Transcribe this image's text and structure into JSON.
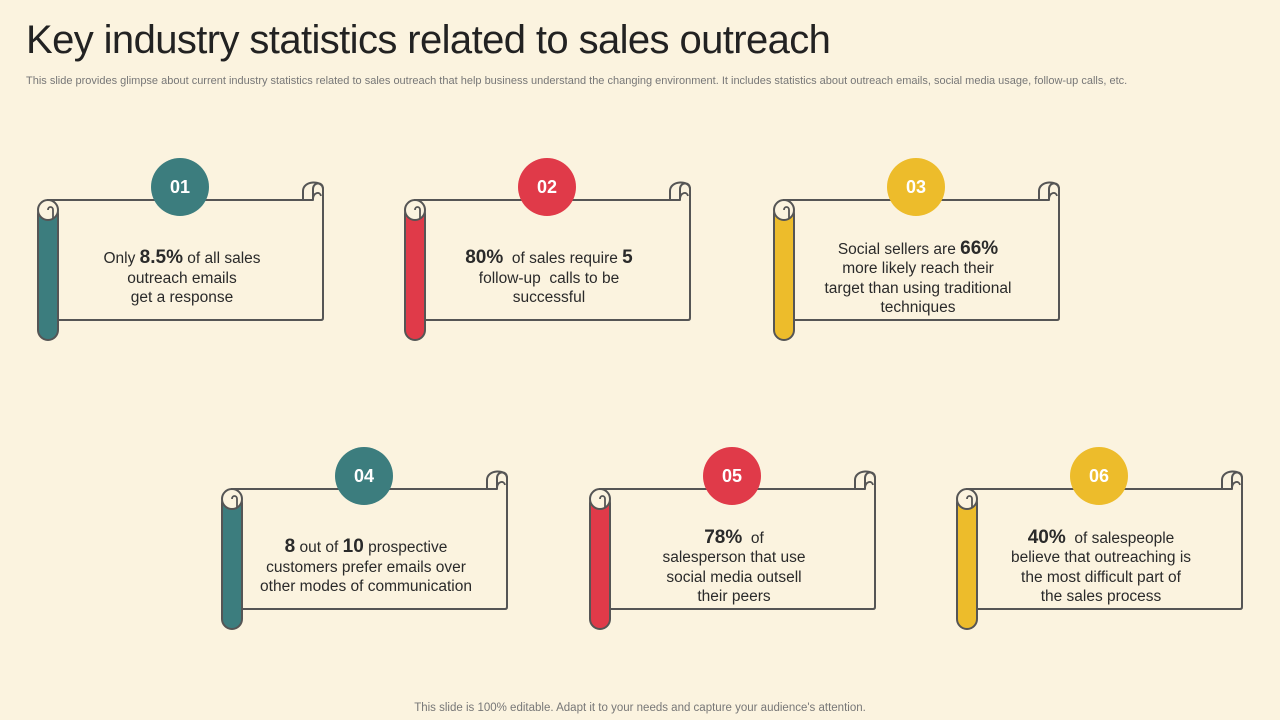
{
  "slide": {
    "title": "Key industry statistics related to sales outreach",
    "subtitle": "This slide provides glimpse about current industry statistics related to sales outreach that help business understand the changing environment. It includes statistics about outreach emails, social media usage, follow-up calls, etc.",
    "footer": "This slide is 100% editable. Adapt it to your needs and capture your audience's attention."
  },
  "colors": {
    "teal": "#3c7d7e",
    "red": "#e03a49",
    "yellow": "#edbc2b",
    "background": "#fbf3df",
    "outline": "#555555"
  },
  "cards": [
    {
      "number": "01",
      "color": "#3c7d7e",
      "lines": [
        [
          {
            "t": "Only "
          },
          {
            "t": "8.5%",
            "b": true
          },
          {
            "t": " of all sales"
          }
        ],
        [
          {
            "t": "outreach emails"
          }
        ],
        [
          {
            "t": "get a response"
          }
        ]
      ]
    },
    {
      "number": "02",
      "color": "#e03a49",
      "lines": [
        [
          {
            "t": "80%",
            "b": true
          },
          {
            "t": "  of sales require "
          },
          {
            "t": "5",
            "b": true
          }
        ],
        [
          {
            "t": "follow-up  calls to be"
          }
        ],
        [
          {
            "t": "successful"
          }
        ]
      ]
    },
    {
      "number": "03",
      "color": "#edbc2b",
      "lines": [
        [
          {
            "t": "Social sellers are "
          },
          {
            "t": "66%",
            "b": true
          }
        ],
        [
          {
            "t": "more likely reach their"
          }
        ],
        [
          {
            "t": "target than using traditional"
          }
        ],
        [
          {
            "t": "techniques"
          }
        ]
      ]
    },
    {
      "number": "04",
      "color": "#3c7d7e",
      "lines": [
        [
          {
            "t": "8",
            "b": true
          },
          {
            "t": " out of "
          },
          {
            "t": "10",
            "b": true
          },
          {
            "t": " prospective"
          }
        ],
        [
          {
            "t": "customers prefer emails over"
          }
        ],
        [
          {
            "t": "other modes of communication"
          }
        ]
      ]
    },
    {
      "number": "05",
      "color": "#e03a49",
      "lines": [
        [
          {
            "t": "78%",
            "b": true
          },
          {
            "t": "  of"
          }
        ],
        [
          {
            "t": "salesperson that use"
          }
        ],
        [
          {
            "t": "social media outsell"
          }
        ],
        [
          {
            "t": "their peers"
          }
        ]
      ]
    },
    {
      "number": "06",
      "color": "#edbc2b",
      "lines": [
        [
          {
            "t": "40%",
            "b": true
          },
          {
            "t": "  of salespeople"
          }
        ],
        [
          {
            "t": "believe that outreaching is"
          }
        ],
        [
          {
            "t": "the most difficult part of"
          }
        ],
        [
          {
            "t": "the sales process"
          }
        ]
      ]
    }
  ]
}
